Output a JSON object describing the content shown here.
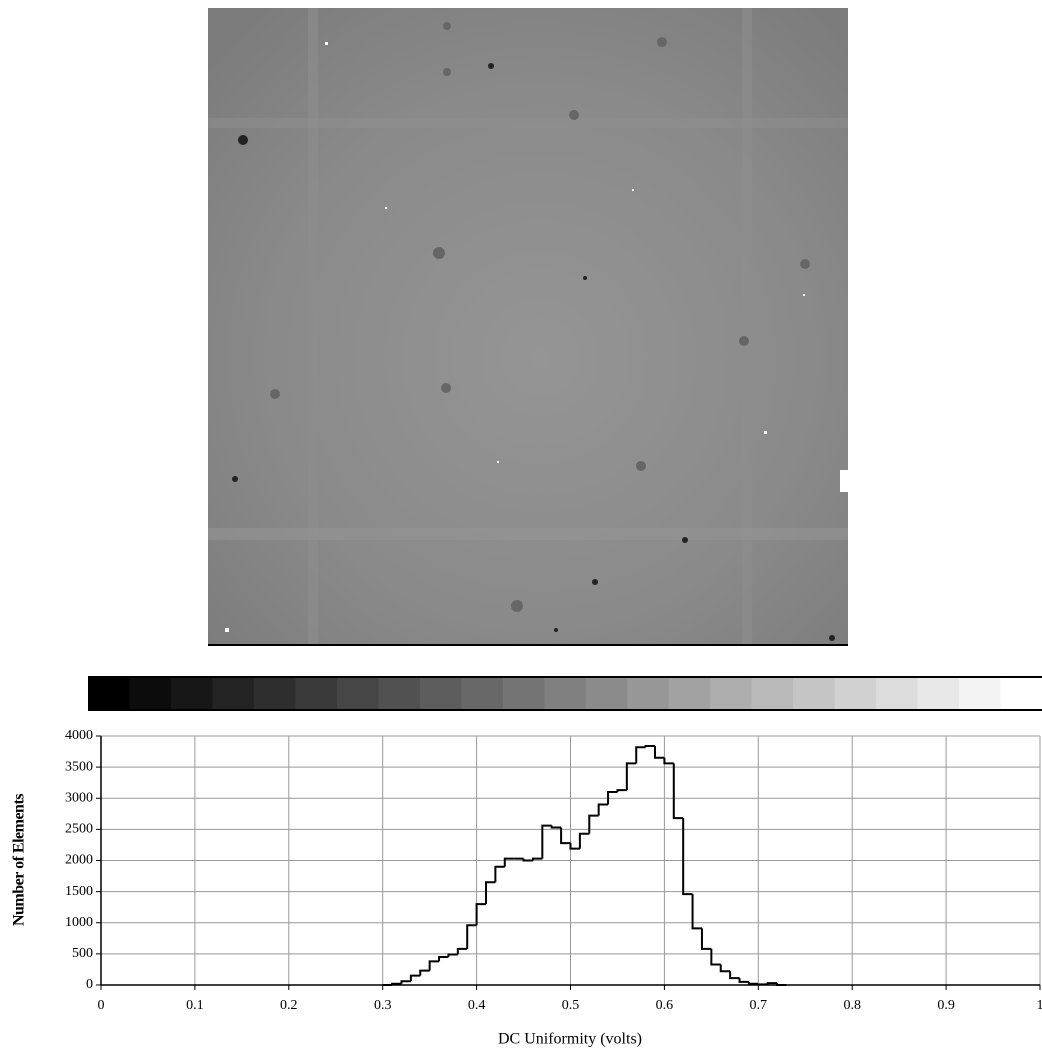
{
  "chart_data": {
    "type": "histogram",
    "x_label": "DC Uniformity (volts)",
    "y_label": "Number of Elements",
    "bins": [
      0.3,
      0.31,
      0.32,
      0.33,
      0.34,
      0.35,
      0.36,
      0.37,
      0.38,
      0.39,
      0.4,
      0.41,
      0.42,
      0.43,
      0.44,
      0.45,
      0.46,
      0.47,
      0.48,
      0.49,
      0.5,
      0.51,
      0.52,
      0.53,
      0.54,
      0.55,
      0.56,
      0.57,
      0.58,
      0.59,
      0.6,
      0.61,
      0.62,
      0.63,
      0.64,
      0.65,
      0.66,
      0.67,
      0.68,
      0.69,
      0.7,
      0.71,
      0.72,
      0.73
    ],
    "counts": [
      0,
      20,
      60,
      150,
      230,
      380,
      450,
      490,
      580,
      960,
      1300,
      1650,
      1900,
      2030,
      2030,
      2000,
      2030,
      2560,
      2530,
      2280,
      2190,
      2430,
      2720,
      2900,
      3100,
      3130,
      3560,
      3820,
      3840,
      3650,
      3560,
      2680,
      1460,
      910,
      580,
      330,
      220,
      110,
      50,
      20,
      10,
      30,
      0
    ],
    "color": "#000000",
    "xlim": [
      0,
      1
    ],
    "xticks": [
      0,
      0.1,
      0.2,
      0.3,
      0.4,
      0.5,
      0.6,
      0.7,
      0.8,
      0.9,
      1
    ],
    "ylim": [
      0,
      4000
    ],
    "yticks": [
      0,
      500,
      1000,
      1500,
      2000,
      2500,
      3000,
      3500,
      4000
    ],
    "grid": true
  }
}
